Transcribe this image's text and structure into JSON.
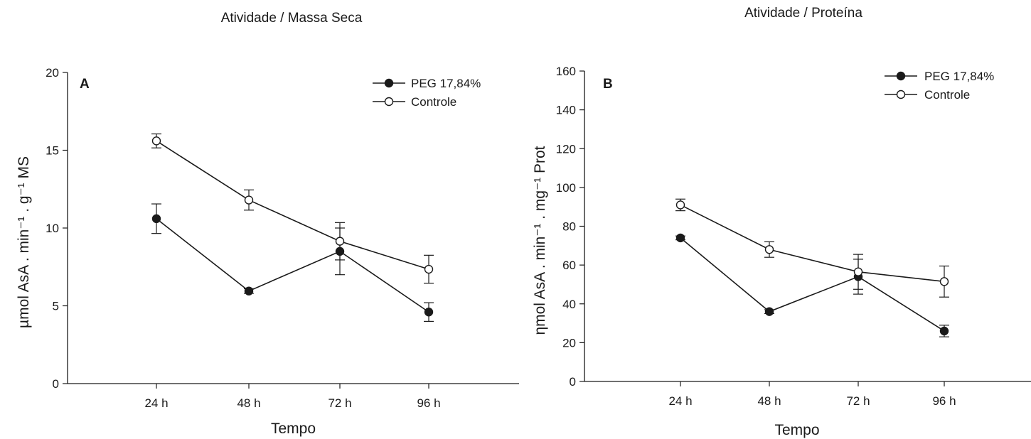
{
  "chart_data": [
    {
      "type": "line",
      "title": "Atividade / Massa Seca",
      "panel_label": "A",
      "xlabel": "Tempo",
      "ylabel": "µmol AsA . min⁻¹ . g⁻¹ MS",
      "categories": [
        "24 h",
        "48 h",
        "72 h",
        "96 h"
      ],
      "ylim": [
        0,
        20
      ],
      "yticks": [
        "0",
        "5",
        "10",
        "15",
        "20"
      ],
      "legend_position": "top-right",
      "series": [
        {
          "name": "PEG 17,84%",
          "marker": "filled-circle",
          "values": [
            10.6,
            5.95,
            8.5,
            4.6
          ],
          "errors": [
            0.95,
            0.15,
            1.5,
            0.6
          ]
        },
        {
          "name": "Controle",
          "marker": "open-circle",
          "values": [
            15.6,
            11.8,
            9.15,
            7.35
          ],
          "errors": [
            0.45,
            0.65,
            1.2,
            0.9
          ]
        }
      ]
    },
    {
      "type": "line",
      "title": "Atividade / Proteína",
      "panel_label": "B",
      "xlabel": "Tempo",
      "ylabel": "ηmol AsA . min⁻¹ . mg⁻¹ Prot",
      "categories": [
        "24 h",
        "48 h",
        "72 h",
        "96 h"
      ],
      "ylim": [
        0,
        160
      ],
      "yticks": [
        "0",
        "20",
        "40",
        "60",
        "80",
        "100",
        "120",
        "140",
        "160"
      ],
      "legend_position": "top-right",
      "series": [
        {
          "name": "PEG 17,84%",
          "marker": "filled-circle",
          "values": [
            74,
            36,
            54,
            26
          ],
          "errors": [
            1,
            1,
            9,
            3
          ]
        },
        {
          "name": "Controle",
          "marker": "open-circle",
          "values": [
            91,
            68,
            56.5,
            51.5
          ],
          "errors": [
            3,
            4,
            9,
            8
          ]
        }
      ]
    }
  ]
}
